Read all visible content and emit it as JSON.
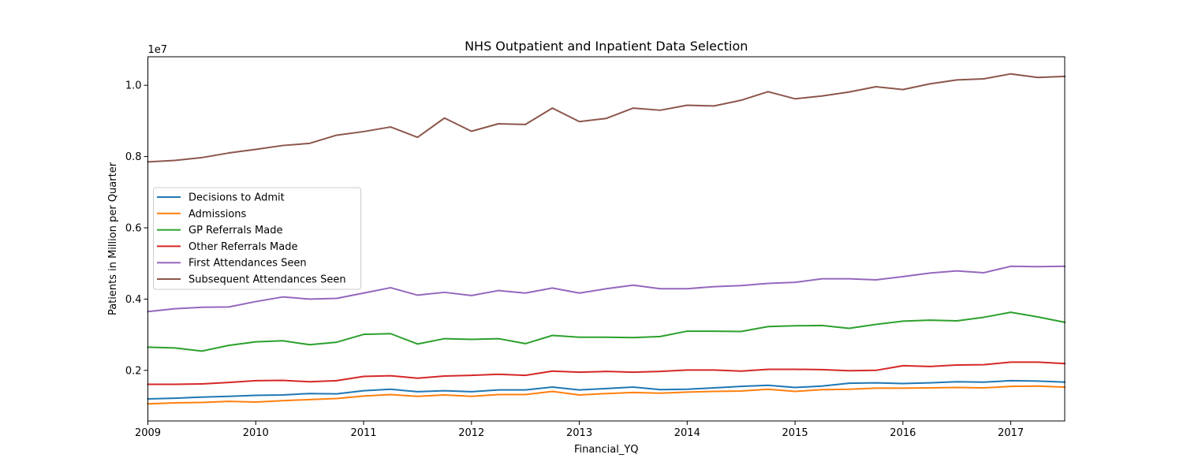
{
  "chart_data": {
    "type": "line",
    "title": "NHS Outpatient and Inpatient Data Selection",
    "xlabel": "Financial_YQ",
    "ylabel": "Patients in Million per Quarter",
    "offset_label": "1e7",
    "x": [
      2009.0,
      2009.25,
      2009.5,
      2009.75,
      2010.0,
      2010.25,
      2010.5,
      2010.75,
      2011.0,
      2011.25,
      2011.5,
      2011.75,
      2012.0,
      2012.25,
      2012.5,
      2012.75,
      2013.0,
      2013.25,
      2013.5,
      2013.75,
      2014.0,
      2014.25,
      2014.5,
      2014.75,
      2015.0,
      2015.25,
      2015.5,
      2015.75,
      2016.0,
      2016.25,
      2016.5,
      2016.75,
      2017.0,
      2017.25,
      2017.5
    ],
    "xlim": [
      2009,
      2017.5
    ],
    "ylim": [
      580000,
      10800000
    ],
    "x_ticks": [
      2009,
      2010,
      2011,
      2012,
      2013,
      2014,
      2015,
      2016,
      2017
    ],
    "y_ticks": [
      2000000,
      4000000,
      6000000,
      8000000,
      10000000
    ],
    "y_tick_labels": [
      "0.2",
      "0.4",
      "0.6",
      "0.8",
      "1.0"
    ],
    "grid": false,
    "legend_position": "center-left",
    "series": [
      {
        "name": "Decisions to Admit",
        "color": "#1f77b4",
        "values": [
          1200000,
          1220000,
          1250000,
          1270000,
          1300000,
          1310000,
          1350000,
          1340000,
          1430000,
          1470000,
          1400000,
          1430000,
          1400000,
          1450000,
          1450000,
          1530000,
          1450000,
          1490000,
          1530000,
          1460000,
          1470000,
          1510000,
          1550000,
          1580000,
          1520000,
          1560000,
          1640000,
          1650000,
          1630000,
          1650000,
          1680000,
          1670000,
          1710000,
          1700000,
          1670000
        ]
      },
      {
        "name": "Admissions",
        "color": "#ff7f0e",
        "values": [
          1060000,
          1090000,
          1100000,
          1130000,
          1110000,
          1150000,
          1180000,
          1210000,
          1280000,
          1320000,
          1270000,
          1310000,
          1270000,
          1320000,
          1320000,
          1410000,
          1310000,
          1350000,
          1380000,
          1360000,
          1390000,
          1410000,
          1420000,
          1470000,
          1410000,
          1460000,
          1470000,
          1500000,
          1500000,
          1510000,
          1520000,
          1510000,
          1550000,
          1560000,
          1530000
        ]
      },
      {
        "name": "GP Referrals Made",
        "color": "#2ca02c",
        "values": [
          2650000,
          2630000,
          2540000,
          2700000,
          2800000,
          2830000,
          2720000,
          2790000,
          3010000,
          3030000,
          2740000,
          2890000,
          2870000,
          2890000,
          2750000,
          2980000,
          2930000,
          2930000,
          2920000,
          2950000,
          3100000,
          3100000,
          3090000,
          3230000,
          3250000,
          3260000,
          3180000,
          3290000,
          3380000,
          3410000,
          3390000,
          3490000,
          3630000,
          3500000,
          3350000
        ]
      },
      {
        "name": "Other Referrals Made",
        "color": "#d62728",
        "values": [
          1610000,
          1610000,
          1620000,
          1660000,
          1710000,
          1720000,
          1680000,
          1710000,
          1830000,
          1850000,
          1780000,
          1840000,
          1860000,
          1890000,
          1860000,
          1980000,
          1950000,
          1970000,
          1950000,
          1970000,
          2010000,
          2010000,
          1980000,
          2030000,
          2030000,
          2020000,
          1990000,
          2000000,
          2130000,
          2110000,
          2150000,
          2160000,
          2230000,
          2230000,
          2190000
        ]
      },
      {
        "name": "First Attendances Seen",
        "color": "#9467bd",
        "values": [
          3650000,
          3730000,
          3770000,
          3780000,
          3930000,
          4060000,
          4000000,
          4020000,
          4170000,
          4320000,
          4110000,
          4190000,
          4100000,
          4240000,
          4170000,
          4310000,
          4170000,
          4290000,
          4390000,
          4290000,
          4290000,
          4350000,
          4380000,
          4440000,
          4470000,
          4570000,
          4570000,
          4540000,
          4630000,
          4730000,
          4790000,
          4740000,
          4920000,
          4910000,
          4920000
        ]
      },
      {
        "name": "Subsequent Attendances Seen",
        "color": "#8c564b",
        "values": [
          7850000,
          7890000,
          7970000,
          8100000,
          8200000,
          8310000,
          8370000,
          8600000,
          8700000,
          8830000,
          8540000,
          9080000,
          8710000,
          8920000,
          8900000,
          9360000,
          8980000,
          9070000,
          9360000,
          9300000,
          9440000,
          9420000,
          9580000,
          9820000,
          9620000,
          9700000,
          9810000,
          9960000,
          9880000,
          10040000,
          10150000,
          10180000,
          10320000,
          10220000,
          10250000
        ]
      }
    ]
  }
}
